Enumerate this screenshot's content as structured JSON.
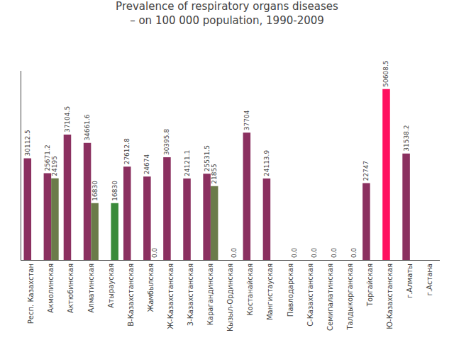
{
  "chart_data": {
    "type": "bar",
    "title": "Prevalence of respiratory organs diseases\n– on 100 000 population, 1990-2009",
    "categories": [
      "Респ. Казахстан",
      "Акмолинская",
      "Актюбинская",
      "Алматинская",
      "Атырауская",
      "В-Казахстанская",
      "Жамбылская",
      "Ж-Казахстанская",
      "3-Казахстанская",
      "Карагандинская",
      "Кызыл-Ординская",
      "Костанайская",
      "Мангистауская",
      "Павлодарская",
      "С-Казахстанская",
      "Семипалатинская",
      "Талдыкорганская",
      "Торгайская",
      "Ю-Казахстанская",
      "г.Алматы",
      "г.Астана"
    ],
    "series": [
      {
        "values": [
          30112.5,
          25671.2,
          37104.5,
          34661.6,
          0.0,
          27612.8,
          24674.0,
          30395.8,
          24121.1,
          25531.5,
          0.0,
          37704.0,
          24113.9,
          0.0,
          0.0,
          0.0,
          0.0,
          22747.0,
          50608.5,
          31538.2,
          0.0
        ],
        "value_labels": [
          "30112.5",
          "25671.2",
          "37104.5",
          "34661.6",
          null,
          "27612.8",
          "24674",
          "30395.8",
          "24121.1",
          "25531.5",
          null,
          "37704",
          "24113.9",
          null,
          null,
          null,
          null,
          "22747",
          "50608.5",
          "31538.2",
          null
        ],
        "colors": [
          "#8B3060",
          "#8B3060",
          "#8B3060",
          "#8B3060",
          "#8B3060",
          "#8B3060",
          "#8B3060",
          "#8B3060",
          "#8B3060",
          "#8B3060",
          "#8B3060",
          "#8B3060",
          "#8B3060",
          "#8B3060",
          "#8B3060",
          "#8B3060",
          "#8B3060",
          "#8B3060",
          "#FF1060",
          "#8B3060",
          "#8B3060"
        ]
      },
      {
        "values": [
          0.0,
          24195.0,
          0.0,
          16830.0,
          16830.0,
          0.0,
          0.0,
          0.0,
          0.0,
          21855.0,
          0.0,
          0.0,
          0.0,
          0.0,
          0.0,
          0.0,
          0.0,
          0.0,
          0.0,
          0.0,
          0.0
        ],
        "value_labels": [
          null,
          "24195",
          null,
          "16830",
          "16830",
          null,
          "0.0",
          null,
          null,
          "21855",
          "0.0",
          null,
          null,
          "0.0",
          "0.0",
          "0.0",
          "0.0",
          null,
          null,
          null,
          null
        ],
        "colors": [
          "#6B7B4A",
          "#6B7B4A",
          "#6B7B4A",
          "#6B7B4A",
          "#3A8A3A",
          "#6B7B4A",
          "#6B7B4A",
          "#6B7B4A",
          "#6B7B4A",
          "#6B7B4A",
          "#6B7B4A",
          "#6B7B4A",
          "#6B7B4A",
          "#6B7B4A",
          "#6B7B4A",
          "#6B7B4A",
          "#6B7B4A",
          "#6B7B4A",
          "#6B7B4A",
          "#6B7B4A",
          "#6B7B4A"
        ]
      }
    ],
    "ylim": [
      0,
      56000
    ],
    "yticks": [],
    "grid": false,
    "data_labels": true,
    "tick_labels": "x"
  }
}
